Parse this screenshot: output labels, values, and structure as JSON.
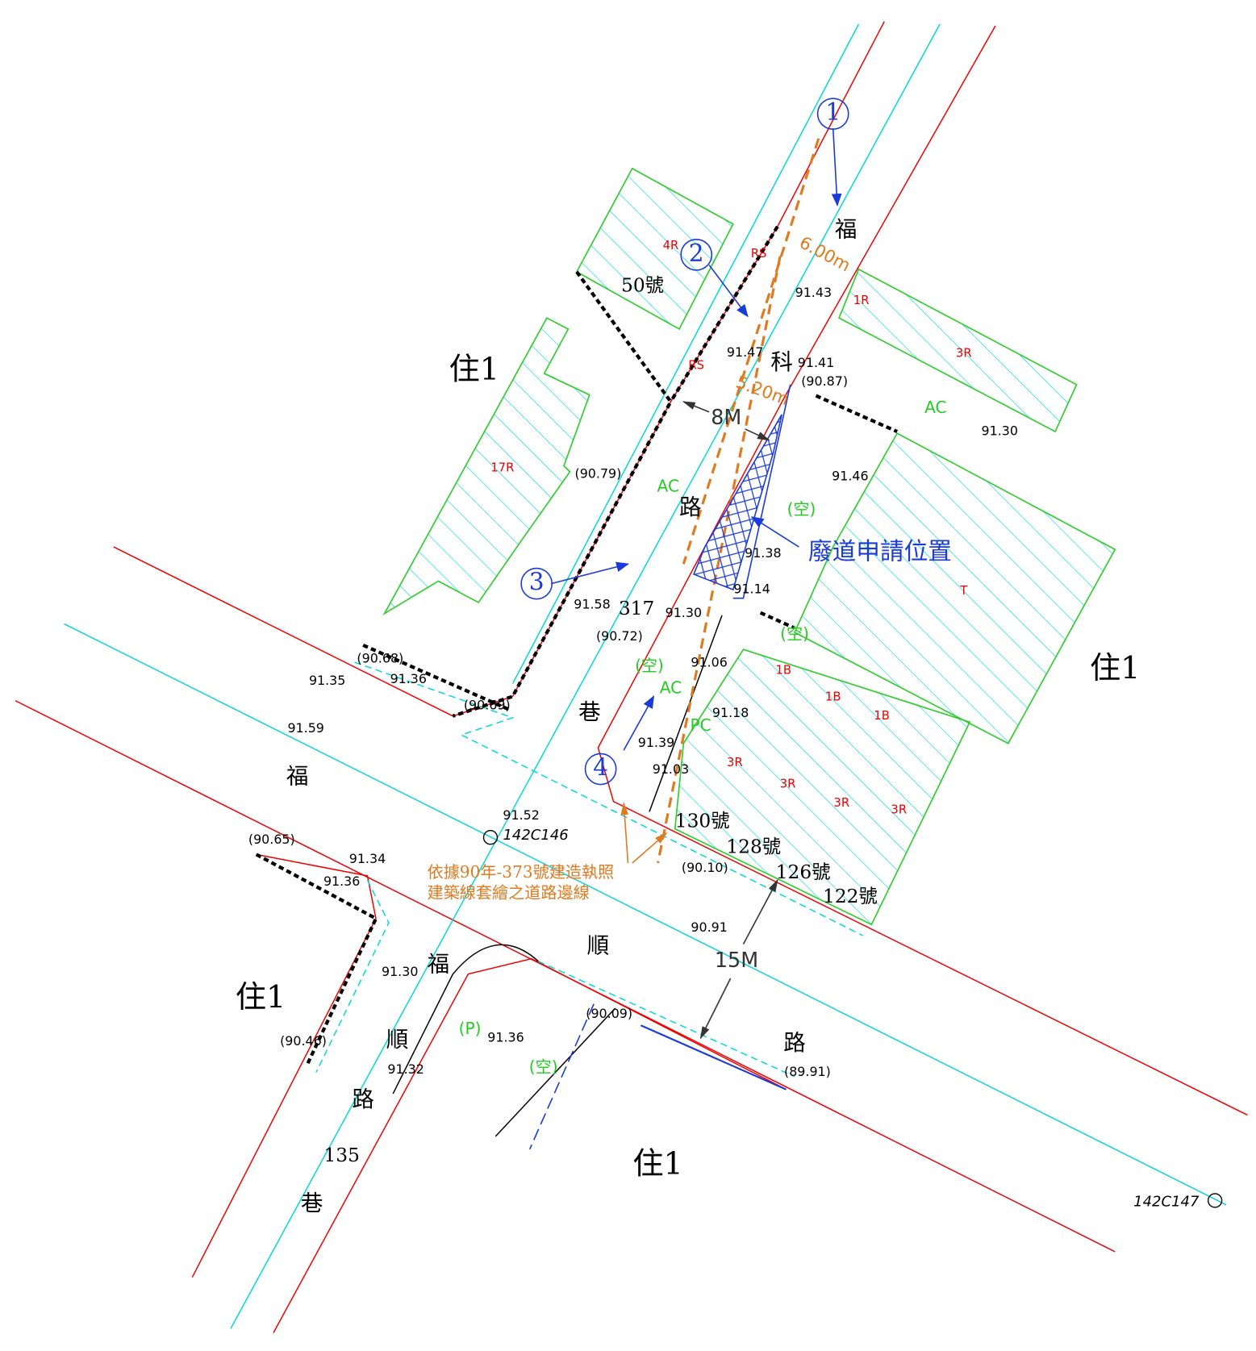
{
  "road_labels": {
    "lane_vertical": [
      "福",
      "科",
      "路",
      "317",
      "巷"
    ],
    "road_main": [
      "福",
      "順",
      "路"
    ],
    "lane_135": [
      "福",
      "順",
      "路",
      "135",
      "巷"
    ]
  },
  "widths": [
    "8M",
    "15M",
    "6.00m",
    "5.20m"
  ],
  "zones": [
    "住1",
    "住1",
    "住1",
    "住1"
  ],
  "house_numbers": [
    "50號",
    "130號",
    "128號",
    "126號",
    "122號"
  ],
  "structure_codes": [
    "4R",
    "RS",
    "RS",
    "1R",
    "3R",
    "17R",
    "T",
    "1B",
    "1B",
    "1B",
    "3R",
    "3R",
    "3R",
    "3R"
  ],
  "surface_codes": [
    "AC",
    "AC",
    "AC",
    "PC",
    "(空)",
    "(空)",
    "(空)",
    "(空)",
    "(P)"
  ],
  "elevations": [
    "91.43",
    "91.47",
    "91.41",
    "(90.87)",
    "91.30",
    "91.46",
    "(90.79)",
    "91.38",
    "91.14",
    "91.58",
    "91.30",
    "(90.72)",
    "91.06",
    "91.18",
    "(90.68)",
    "91.35",
    "91.36",
    "(90.69)",
    "91.59",
    "91.39",
    "91.03",
    "91.52",
    "(90.65)",
    "91.34",
    "91.36",
    "(90.10)",
    "90.91",
    "91.30",
    "(90.09)",
    "91.36",
    "(90.46)",
    "91.32",
    "(89.91)"
  ],
  "control_points": [
    "142C146",
    "142C147"
  ],
  "markers": [
    "1",
    "2",
    "3",
    "4"
  ],
  "callout": "廢道申請位置",
  "annotation": [
    "依據90年-373號建造執照",
    "建築線套繪之道路邊線"
  ]
}
